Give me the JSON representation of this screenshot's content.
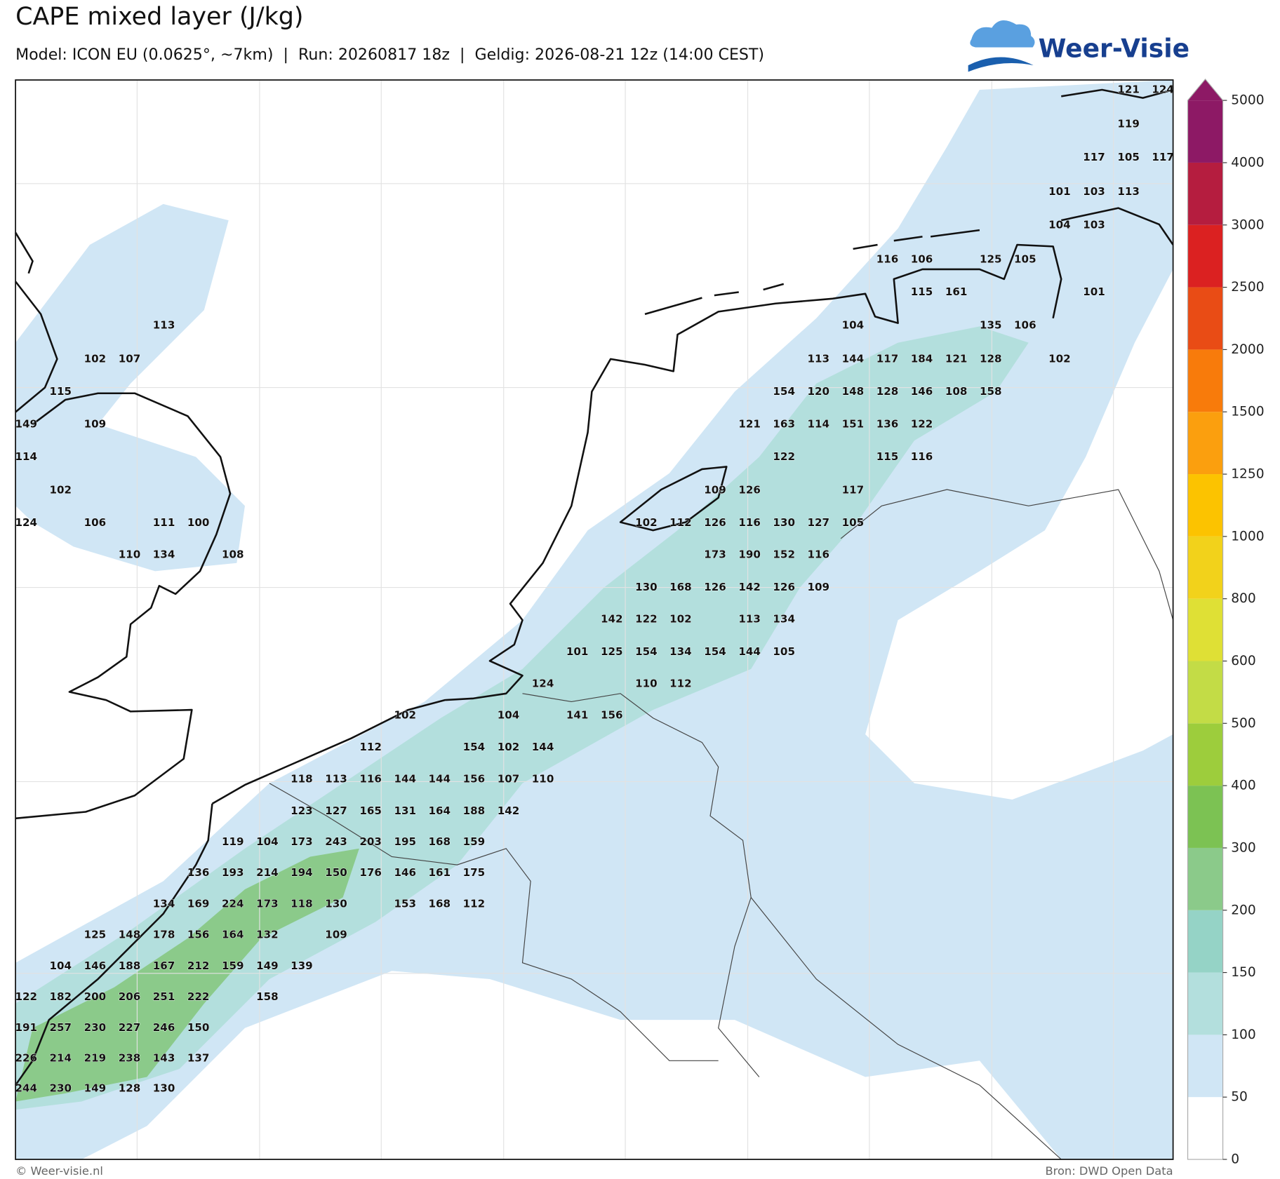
{
  "header": {
    "title": "CAPE mixed layer (J/kg)",
    "subtitle": "Model: ICON EU (0.0625°, ~7km)  |  Run: 20260817 18z  |  Geldig: 2026-08-21 12z (14:00 CEST)"
  },
  "logo": {
    "text": "Weer-Visie"
  },
  "map": {
    "value_rows": [
      [
        null,
        null,
        null,
        null,
        null,
        null,
        null,
        null,
        null,
        null,
        null,
        null,
        null,
        null,
        null,
        null,
        null,
        null,
        null,
        null,
        null,
        null,
        null,
        null,
        null,
        null,
        null,
        null,
        null,
        null,
        null,
        null,
        121,
        124
      ],
      [
        null,
        null,
        null,
        null,
        null,
        null,
        null,
        null,
        null,
        null,
        null,
        null,
        null,
        null,
        null,
        null,
        null,
        null,
        null,
        null,
        null,
        null,
        null,
        null,
        null,
        null,
        null,
        null,
        null,
        null,
        null,
        null,
        119
      ],
      [
        null,
        null,
        null,
        null,
        null,
        null,
        null,
        null,
        null,
        null,
        null,
        null,
        null,
        null,
        null,
        null,
        null,
        null,
        null,
        null,
        null,
        null,
        null,
        null,
        null,
        null,
        null,
        null,
        null,
        null,
        null,
        117,
        105,
        117
      ],
      [
        null,
        null,
        null,
        null,
        null,
        null,
        null,
        null,
        null,
        null,
        null,
        null,
        null,
        null,
        null,
        null,
        null,
        null,
        null,
        null,
        null,
        null,
        null,
        null,
        null,
        null,
        null,
        null,
        null,
        null,
        101,
        103,
        113
      ],
      [
        null,
        null,
        null,
        null,
        null,
        null,
        null,
        null,
        null,
        null,
        null,
        null,
        null,
        null,
        null,
        null,
        null,
        null,
        null,
        null,
        null,
        null,
        null,
        null,
        null,
        null,
        null,
        null,
        null,
        null,
        104,
        103
      ],
      [
        null,
        null,
        null,
        null,
        null,
        null,
        null,
        null,
        null,
        null,
        null,
        null,
        null,
        null,
        null,
        null,
        null,
        null,
        null,
        null,
        null,
        null,
        null,
        null,
        null,
        116,
        106,
        null,
        125,
        105
      ],
      [
        null,
        null,
        null,
        null,
        null,
        null,
        null,
        null,
        null,
        null,
        null,
        null,
        null,
        null,
        null,
        null,
        null,
        null,
        null,
        null,
        null,
        null,
        null,
        null,
        null,
        null,
        115,
        161,
        null,
        null,
        null,
        101
      ],
      [
        null,
        null,
        null,
        null,
        113,
        null,
        null,
        null,
        null,
        null,
        null,
        null,
        null,
        null,
        null,
        null,
        null,
        null,
        null,
        null,
        null,
        null,
        null,
        null,
        104,
        null,
        null,
        null,
        135,
        106
      ],
      [
        null,
        null,
        102,
        107,
        null,
        null,
        null,
        null,
        null,
        null,
        null,
        null,
        null,
        null,
        null,
        null,
        null,
        null,
        null,
        null,
        null,
        null,
        null,
        113,
        144,
        117,
        184,
        121,
        128,
        null,
        102
      ],
      [
        null,
        115,
        null,
        null,
        null,
        null,
        null,
        null,
        null,
        null,
        null,
        null,
        null,
        null,
        null,
        null,
        null,
        null,
        null,
        null,
        null,
        null,
        154,
        120,
        148,
        128,
        146,
        108,
        158
      ],
      [
        149,
        null,
        109,
        null,
        null,
        null,
        null,
        null,
        null,
        null,
        null,
        null,
        null,
        null,
        null,
        null,
        null,
        null,
        null,
        null,
        null,
        121,
        163,
        114,
        151,
        136,
        122
      ],
      [
        114,
        null,
        null,
        null,
        null,
        null,
        null,
        null,
        null,
        null,
        null,
        null,
        null,
        null,
        null,
        null,
        null,
        null,
        null,
        null,
        null,
        null,
        122,
        null,
        null,
        115,
        116
      ],
      [
        null,
        102,
        null,
        null,
        null,
        null,
        null,
        null,
        null,
        null,
        null,
        null,
        null,
        null,
        null,
        null,
        null,
        null,
        null,
        null,
        109,
        126,
        null,
        null,
        117
      ],
      [
        124,
        null,
        106,
        null,
        111,
        100,
        null,
        null,
        null,
        null,
        null,
        null,
        null,
        null,
        null,
        null,
        null,
        null,
        102,
        112,
        126,
        116,
        130,
        127,
        105
      ],
      [
        null,
        null,
        null,
        110,
        134,
        null,
        108,
        null,
        null,
        null,
        null,
        null,
        null,
        null,
        null,
        null,
        null,
        null,
        null,
        null,
        173,
        190,
        152,
        116
      ],
      [
        null,
        null,
        null,
        null,
        null,
        null,
        null,
        null,
        null,
        null,
        null,
        null,
        null,
        null,
        null,
        null,
        null,
        null,
        130,
        168,
        126,
        142,
        126,
        109
      ],
      [
        null,
        null,
        null,
        null,
        null,
        null,
        null,
        null,
        null,
        null,
        null,
        null,
        null,
        null,
        null,
        null,
        null,
        142,
        122,
        102,
        null,
        113,
        134
      ],
      [
        null,
        null,
        null,
        null,
        null,
        null,
        null,
        null,
        null,
        null,
        null,
        null,
        null,
        null,
        null,
        null,
        101,
        125,
        154,
        134,
        154,
        144,
        105
      ],
      [
        null,
        null,
        null,
        null,
        null,
        null,
        null,
        null,
        null,
        null,
        null,
        null,
        null,
        null,
        null,
        124,
        null,
        null,
        110,
        112
      ],
      [
        null,
        null,
        null,
        null,
        null,
        null,
        null,
        null,
        null,
        null,
        null,
        102,
        null,
        null,
        104,
        null,
        141,
        156
      ],
      [
        null,
        null,
        null,
        null,
        null,
        null,
        null,
        null,
        null,
        null,
        112,
        null,
        null,
        154,
        102,
        144
      ],
      [
        null,
        null,
        null,
        null,
        null,
        null,
        null,
        null,
        118,
        113,
        116,
        144,
        144,
        156,
        107,
        110
      ],
      [
        null,
        null,
        null,
        null,
        null,
        null,
        null,
        null,
        123,
        127,
        165,
        131,
        164,
        188,
        142
      ],
      [
        null,
        null,
        null,
        null,
        null,
        null,
        119,
        104,
        173,
        243,
        203,
        195,
        168,
        159
      ],
      [
        null,
        null,
        null,
        null,
        null,
        136,
        193,
        214,
        194,
        150,
        176,
        146,
        161,
        175
      ],
      [
        null,
        null,
        null,
        null,
        134,
        169,
        224,
        173,
        118,
        130,
        null,
        153,
        168,
        112
      ],
      [
        null,
        null,
        125,
        148,
        178,
        156,
        164,
        132,
        null,
        109
      ],
      [
        null,
        104,
        146,
        188,
        167,
        212,
        159,
        149,
        139
      ],
      [
        122,
        182,
        200,
        206,
        251,
        222,
        null,
        158
      ],
      [
        191,
        257,
        230,
        227,
        246,
        150
      ],
      [
        226,
        214,
        219,
        238,
        143,
        137
      ],
      [
        244,
        230,
        149,
        128,
        130
      ]
    ]
  },
  "colorbar": {
    "ticks": [
      0,
      50,
      100,
      150,
      200,
      300,
      400,
      500,
      600,
      800,
      1000,
      1250,
      1500,
      2000,
      2500,
      3000,
      4000,
      5000
    ],
    "colors": [
      "#ffffff",
      "#d0e6f5",
      "#b3dfdd",
      "#95d3c6",
      "#8bca8a",
      "#7cc253",
      "#9dcd3c",
      "#c3dc46",
      "#dfe035",
      "#f2d21b",
      "#fcc300",
      "#fb9f0e",
      "#f87b0b",
      "#e94c15",
      "#db2121",
      "#b51d3f",
      "#8d1965"
    ],
    "extend_color": "#8d1965"
  },
  "footer": {
    "left": "© Weer-visie.nl",
    "right": "Bron: DWD Open Data"
  }
}
